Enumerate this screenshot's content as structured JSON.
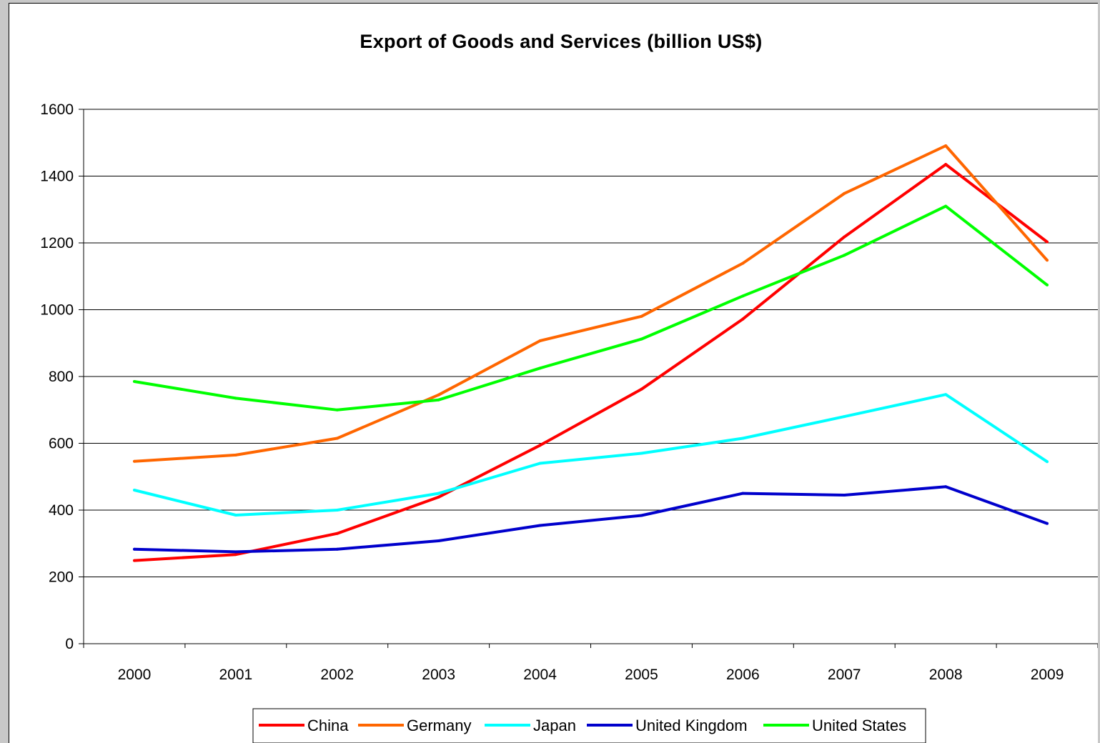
{
  "chart_data": {
    "type": "line",
    "title": "Export of Goods and Services (billion US$)",
    "xlabel": "",
    "ylabel": "",
    "x": [
      "2000",
      "2001",
      "2002",
      "2003",
      "2004",
      "2005",
      "2006",
      "2007",
      "2008",
      "2009"
    ],
    "ylim": [
      0,
      1600
    ],
    "yticks": [
      0,
      200,
      400,
      600,
      800,
      1000,
      1200,
      1400,
      1600
    ],
    "grid": "horizontal",
    "legend_position": "bottom",
    "series": [
      {
        "name": "China",
        "color": "#ff0000",
        "values": [
          249,
          267,
          330,
          439,
          594,
          762,
          972,
          1218,
          1435,
          1203
        ]
      },
      {
        "name": "Germany",
        "color": "#ff6600",
        "values": [
          546,
          565,
          615,
          745,
          907,
          980,
          1139,
          1348,
          1491,
          1148
        ]
      },
      {
        "name": "Japan",
        "color": "#00ffff",
        "values": [
          460,
          385,
          400,
          450,
          540,
          570,
          615,
          680,
          746,
          545
        ]
      },
      {
        "name": "United Kingdom",
        "color": "#0000cc",
        "values": [
          283,
          275,
          283,
          308,
          354,
          384,
          450,
          445,
          470,
          360
        ]
      },
      {
        "name": "United States",
        "color": "#00ff00",
        "values": [
          785,
          735,
          700,
          730,
          825,
          912,
          1041,
          1163,
          1310,
          1074
        ]
      }
    ]
  }
}
